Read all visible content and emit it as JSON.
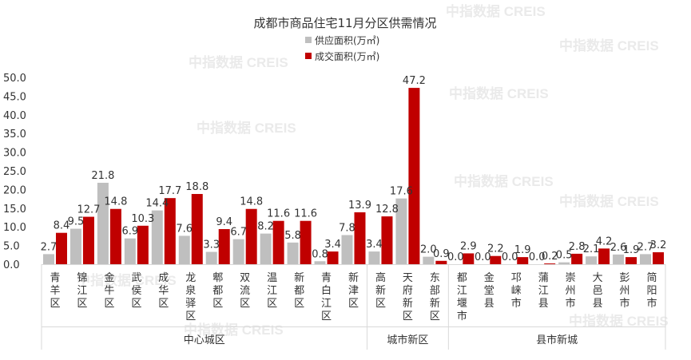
{
  "watermark": "中指数据 CREIS",
  "chart_data": {
    "type": "bar",
    "title": "成都市商品住宅11月分区供需情况",
    "ylim": [
      0,
      50
    ],
    "yticks": [
      "0.0",
      "5.0",
      "10.0",
      "15.0",
      "20.0",
      "25.0",
      "30.0",
      "35.0",
      "40.0",
      "45.0",
      "50.0"
    ],
    "categories": [
      "青羊区",
      "锦江区",
      "金牛区",
      "武侯区",
      "成华区",
      "龙泉驿区",
      "郫都区",
      "双流区",
      "温江区",
      "新都区",
      "青白江区",
      "新津区",
      "高新区",
      "天府新区",
      "东部新区",
      "都江堰市",
      "金堂县",
      "邛崃市",
      "蒲江县",
      "崇州市",
      "大邑县",
      "彭州市",
      "简阳市"
    ],
    "series": [
      {
        "name": "供应面积(万㎡)",
        "color": "#bfbfbf",
        "values": [
          2.7,
          9.5,
          21.8,
          6.9,
          14.4,
          7.6,
          3.3,
          6.7,
          8.2,
          5.8,
          0.8,
          7.8,
          3.4,
          17.6,
          2.0,
          0.0,
          0.0,
          0.0,
          0.0,
          0.5,
          2.1,
          2.6,
          2.7
        ],
        "labels": [
          "2.7",
          "9.5",
          "21.8",
          "6.9",
          "14.4",
          "7.6",
          "3.3",
          "6.7",
          "8.2",
          "5.8",
          "0.8",
          "7.8",
          "3.4",
          "17.6",
          "2.0",
          "0.0",
          "0.0",
          "0.0",
          "0.0",
          "0.5",
          "2.1",
          "2.6",
          "2.7"
        ]
      },
      {
        "name": "成交面积(万㎡)",
        "color": "#c00000",
        "values": [
          8.4,
          12.7,
          14.8,
          10.3,
          17.7,
          18.8,
          9.4,
          14.8,
          11.6,
          11.6,
          3.4,
          13.9,
          12.8,
          47.2,
          0.9,
          2.9,
          2.2,
          1.9,
          0.2,
          2.8,
          4.2,
          1.9,
          3.2
        ],
        "labels": [
          "8.4",
          "12.7",
          "14.8",
          "10.3",
          "17.7",
          "18.8",
          "9.4",
          "14.8",
          "11.6",
          "11.6",
          "3.4",
          "13.9",
          "12.8",
          "47.2",
          "0.9",
          "2.9",
          "2.2",
          "1.9",
          "0.2",
          "2.8",
          "4.2",
          "1.9",
          "3.2"
        ]
      }
    ],
    "groups": [
      {
        "name": "中心城区",
        "count": 12
      },
      {
        "name": "城市新区",
        "count": 3
      },
      {
        "name": "县市新城",
        "count": 8
      }
    ],
    "legend_position": "top-center",
    "grid": false
  }
}
